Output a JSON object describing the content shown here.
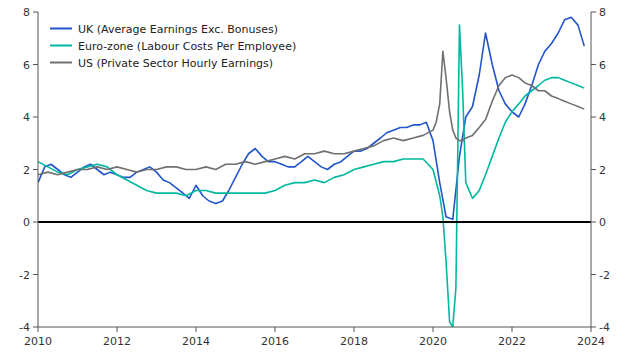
{
  "chart_data": {
    "type": "line",
    "xlim": [
      2010,
      2024
    ],
    "xticks": [
      2010,
      2012,
      2014,
      2016,
      2018,
      2020,
      2022,
      2024
    ],
    "ylim": [
      -4,
      8
    ],
    "yticks": [
      -4,
      -2,
      0,
      2,
      4,
      6,
      8
    ],
    "y2lim": [
      -4,
      8
    ],
    "y2ticks": [
      -4,
      -2,
      0,
      2,
      4,
      6,
      8
    ],
    "grid": false,
    "legend": "upper left",
    "reference_line": {
      "value": 0,
      "color": "#000000"
    },
    "series": [
      {
        "name": "UK (Average Earnings Exc. Bonuses)",
        "color": "#2255cc",
        "x": [
          2010.0,
          2010.17,
          2010.33,
          2010.5,
          2010.67,
          2010.83,
          2011.0,
          2011.17,
          2011.33,
          2011.5,
          2011.67,
          2011.83,
          2012.0,
          2012.17,
          2012.33,
          2012.5,
          2012.67,
          2012.83,
          2013.0,
          2013.17,
          2013.33,
          2013.5,
          2013.67,
          2013.83,
          2014.0,
          2014.17,
          2014.33,
          2014.5,
          2014.67,
          2014.83,
          2015.0,
          2015.17,
          2015.33,
          2015.5,
          2015.67,
          2015.83,
          2016.0,
          2016.17,
          2016.33,
          2016.5,
          2016.67,
          2016.83,
          2017.0,
          2017.17,
          2017.33,
          2017.5,
          2017.67,
          2017.83,
          2018.0,
          2018.17,
          2018.33,
          2018.5,
          2018.67,
          2018.83,
          2019.0,
          2019.17,
          2019.33,
          2019.5,
          2019.67,
          2019.83,
          2020.0,
          2020.17,
          2020.33,
          2020.5,
          2020.67,
          2020.83,
          2021.0,
          2021.17,
          2021.33,
          2021.5,
          2021.67,
          2021.83,
          2022.0,
          2022.17,
          2022.33,
          2022.5,
          2022.67,
          2022.83,
          2023.0,
          2023.17,
          2023.33,
          2023.5,
          2023.67,
          2023.83
        ],
        "values": [
          1.5,
          2.1,
          2.2,
          2.0,
          1.8,
          1.7,
          1.9,
          2.1,
          2.2,
          2.0,
          1.8,
          1.9,
          1.8,
          1.7,
          1.7,
          1.9,
          2.0,
          2.1,
          1.9,
          1.6,
          1.5,
          1.3,
          1.1,
          0.9,
          1.4,
          1.0,
          0.8,
          0.7,
          0.8,
          1.2,
          1.7,
          2.2,
          2.6,
          2.8,
          2.5,
          2.3,
          2.3,
          2.2,
          2.1,
          2.1,
          2.3,
          2.5,
          2.3,
          2.1,
          2.0,
          2.2,
          2.3,
          2.5,
          2.7,
          2.7,
          2.8,
          3.0,
          3.2,
          3.4,
          3.5,
          3.6,
          3.6,
          3.7,
          3.7,
          3.8,
          3.1,
          1.5,
          0.2,
          0.1,
          2.5,
          4.0,
          4.4,
          5.6,
          7.2,
          6.0,
          5.0,
          4.5,
          4.2,
          4.0,
          4.5,
          5.2,
          6.0,
          6.5,
          6.8,
          7.2,
          7.7,
          7.8,
          7.5,
          6.7
        ]
      },
      {
        "name": "Euro-zone (Labour Costs Per Employee)",
        "color": "#00b8a0",
        "x": [
          2010.0,
          2010.25,
          2010.5,
          2010.75,
          2011.0,
          2011.25,
          2011.5,
          2011.75,
          2012.0,
          2012.25,
          2012.5,
          2012.75,
          2013.0,
          2013.25,
          2013.5,
          2013.75,
          2014.0,
          2014.25,
          2014.5,
          2014.75,
          2015.0,
          2015.25,
          2015.5,
          2015.75,
          2016.0,
          2016.25,
          2016.5,
          2016.75,
          2017.0,
          2017.25,
          2017.5,
          2017.75,
          2018.0,
          2018.25,
          2018.5,
          2018.75,
          2019.0,
          2019.25,
          2019.5,
          2019.75,
          2020.0,
          2020.17,
          2020.25,
          2020.33,
          2020.42,
          2020.5,
          2020.58,
          2020.67,
          2020.75,
          2020.83,
          2021.0,
          2021.17,
          2021.33,
          2021.5,
          2021.67,
          2021.83,
          2022.0,
          2022.17,
          2022.33,
          2022.5,
          2022.67,
          2022.83,
          2023.0,
          2023.17,
          2023.33,
          2023.5,
          2023.67,
          2023.83
        ],
        "values": [
          2.3,
          2.1,
          1.9,
          1.8,
          2.0,
          2.1,
          2.2,
          2.1,
          1.8,
          1.6,
          1.4,
          1.2,
          1.1,
          1.1,
          1.1,
          1.0,
          1.2,
          1.2,
          1.1,
          1.1,
          1.1,
          1.1,
          1.1,
          1.1,
          1.2,
          1.4,
          1.5,
          1.5,
          1.6,
          1.5,
          1.7,
          1.8,
          2.0,
          2.1,
          2.2,
          2.3,
          2.3,
          2.4,
          2.4,
          2.4,
          2.0,
          1.0,
          0.2,
          -1.5,
          -3.8,
          -4.0,
          -2.5,
          7.5,
          5.0,
          1.5,
          0.9,
          1.2,
          1.8,
          2.5,
          3.2,
          3.8,
          4.2,
          4.5,
          4.8,
          5.0,
          5.2,
          5.4,
          5.5,
          5.5,
          5.4,
          5.3,
          5.2,
          5.1
        ]
      },
      {
        "name": "US (Private Sector Hourly Earnings)",
        "color": "#707070",
        "x": [
          2010.0,
          2010.25,
          2010.5,
          2010.75,
          2011.0,
          2011.25,
          2011.5,
          2011.75,
          2012.0,
          2012.25,
          2012.5,
          2012.75,
          2013.0,
          2013.25,
          2013.5,
          2013.75,
          2014.0,
          2014.25,
          2014.5,
          2014.75,
          2015.0,
          2015.25,
          2015.5,
          2015.75,
          2016.0,
          2016.25,
          2016.5,
          2016.75,
          2017.0,
          2017.25,
          2017.5,
          2017.75,
          2018.0,
          2018.25,
          2018.5,
          2018.75,
          2019.0,
          2019.25,
          2019.5,
          2019.75,
          2020.0,
          2020.08,
          2020.17,
          2020.25,
          2020.33,
          2020.42,
          2020.5,
          2020.58,
          2020.67,
          2020.75,
          2020.83,
          2021.0,
          2021.17,
          2021.33,
          2021.5,
          2021.67,
          2021.83,
          2022.0,
          2022.17,
          2022.33,
          2022.5,
          2022.67,
          2022.83,
          2023.0,
          2023.17,
          2023.33,
          2023.5,
          2023.67,
          2023.83
        ],
        "values": [
          1.8,
          1.9,
          1.8,
          1.9,
          2.0,
          2.0,
          2.1,
          2.0,
          2.1,
          2.0,
          1.9,
          2.0,
          2.0,
          2.1,
          2.1,
          2.0,
          2.0,
          2.1,
          2.0,
          2.2,
          2.2,
          2.3,
          2.2,
          2.3,
          2.4,
          2.5,
          2.4,
          2.6,
          2.6,
          2.7,
          2.6,
          2.6,
          2.7,
          2.8,
          2.9,
          3.1,
          3.2,
          3.1,
          3.2,
          3.3,
          3.5,
          3.8,
          4.5,
          6.5,
          5.5,
          4.2,
          3.5,
          3.2,
          3.1,
          3.1,
          3.2,
          3.3,
          3.6,
          3.9,
          4.6,
          5.2,
          5.5,
          5.6,
          5.5,
          5.3,
          5.2,
          5.0,
          5.0,
          4.8,
          4.7,
          4.6,
          4.5,
          4.4,
          4.3
        ]
      }
    ]
  }
}
